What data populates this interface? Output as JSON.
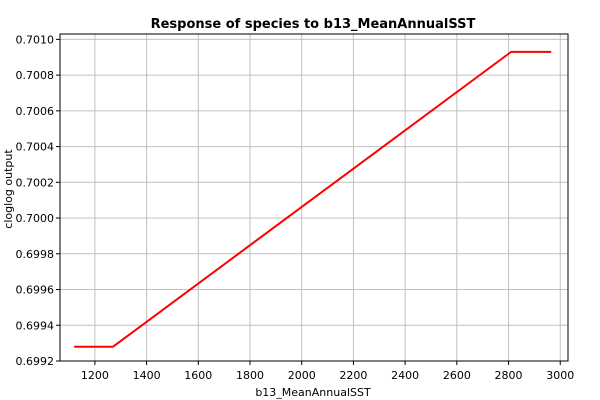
{
  "chart_data": {
    "type": "line",
    "title": "Response of species to b13_MeanAnnualSST",
    "xlabel": "b13_MeanAnnualSST",
    "ylabel": "cloglog output",
    "xlim": [
      1065,
      3030
    ],
    "ylim": [
      0.6992,
      0.70103
    ],
    "xticks": [
      1200,
      1400,
      1600,
      1800,
      2000,
      2200,
      2400,
      2600,
      2800,
      3000
    ],
    "yticks": [
      0.6992,
      0.6994,
      0.6996,
      0.6998,
      0.7,
      0.7002,
      0.7004,
      0.7006,
      0.7008,
      0.701
    ],
    "grid": true,
    "series": [
      {
        "x": [
          1120,
          1270,
          2810,
          2965
        ],
        "y": [
          0.69928,
          0.69928,
          0.70093,
          0.70093
        ],
        "color": "#ff0000"
      }
    ]
  }
}
